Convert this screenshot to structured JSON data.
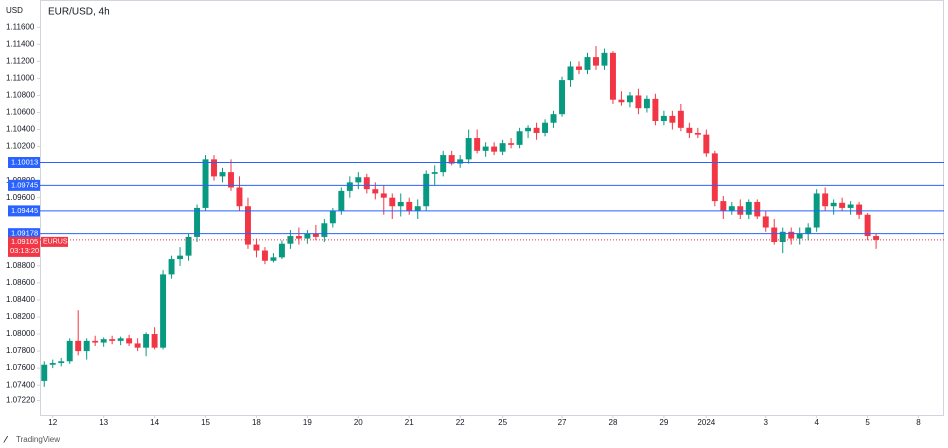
{
  "chart_data": {
    "type": "candlestick",
    "title": "EUR/USD, 4h",
    "y_unit": "USD",
    "symbol": "EURUSD",
    "countdown": "03:13:20",
    "brand": "TradingView",
    "up_color": "#089981",
    "down_color": "#f23645",
    "level_color": "#2962ff",
    "xlim": [
      -0.5,
      106
    ],
    "ylim": [
      1.0705,
      1.1192
    ],
    "xticks": [
      {
        "value": 1,
        "label": "12"
      },
      {
        "value": 7,
        "label": "13"
      },
      {
        "value": 13,
        "label": "14"
      },
      {
        "value": 19,
        "label": "15"
      },
      {
        "value": 25,
        "label": "18"
      },
      {
        "value": 31,
        "label": "19"
      },
      {
        "value": 37,
        "label": "20"
      },
      {
        "value": 43,
        "label": "21"
      },
      {
        "value": 49,
        "label": "22"
      },
      {
        "value": 54,
        "label": "25"
      },
      {
        "value": 61,
        "label": "27"
      },
      {
        "value": 67,
        "label": "28"
      },
      {
        "value": 73,
        "label": "29"
      },
      {
        "value": 78,
        "label": "2024"
      },
      {
        "value": 85,
        "label": "3"
      },
      {
        "value": 91,
        "label": "4"
      },
      {
        "value": 97,
        "label": "5"
      },
      {
        "value": 103,
        "label": "8"
      }
    ],
    "yticks": [
      {
        "value": 1.116,
        "label": "1.11600"
      },
      {
        "value": 1.114,
        "label": "1.11400"
      },
      {
        "value": 1.112,
        "label": "1.11200"
      },
      {
        "value": 1.11,
        "label": "1.11000"
      },
      {
        "value": 1.108,
        "label": "1.10800"
      },
      {
        "value": 1.106,
        "label": "1.10600"
      },
      {
        "value": 1.104,
        "label": "1.10400"
      },
      {
        "value": 1.102,
        "label": "1.10200"
      },
      {
        "value": 1.098,
        "label": "1.09800"
      },
      {
        "value": 1.096,
        "label": "1.09600"
      },
      {
        "value": 1.088,
        "label": "1.08800"
      },
      {
        "value": 1.086,
        "label": "1.08600"
      },
      {
        "value": 1.084,
        "label": "1.08400"
      },
      {
        "value": 1.082,
        "label": "1.08200"
      },
      {
        "value": 1.08,
        "label": "1.08000"
      },
      {
        "value": 1.078,
        "label": "1.07800"
      },
      {
        "value": 1.076,
        "label": "1.07600"
      },
      {
        "value": 1.074,
        "label": "1.07400"
      },
      {
        "value": 1.0722,
        "label": "1.07220"
      }
    ],
    "levels": [
      1.10013,
      1.09745,
      1.09445,
      1.09178
    ],
    "last_price": 1.09105,
    "open": [
      1.0745,
      1.0764,
      1.0766,
      1.0768,
      1.0792,
      1.078,
      1.0792,
      1.079,
      1.0794,
      1.0792,
      1.0795,
      1.0789,
      1.0784,
      1.08,
      1.0784,
      1.087,
      1.0888,
      1.0892,
      1.0914,
      1.0948,
      1.1005,
      1.0985,
      1.099,
      1.0972,
      1.095,
      1.0905,
      1.0898,
      1.0886,
      1.089,
      1.0906,
      1.0915,
      1.0912,
      1.0918,
      1.0914,
      1.093,
      1.0945,
      1.0968,
      1.0978,
      1.0984,
      1.097,
      1.0965,
      1.096,
      1.095,
      1.0955,
      1.0945,
      1.095,
      1.0988,
      1.099,
      1.101,
      1.1,
      1.1005,
      1.103,
      1.1015,
      1.102,
      1.1014,
      1.1024,
      1.1022,
      1.1038,
      1.1042,
      1.1036,
      1.1048,
      1.1058,
      1.1098,
      1.1114,
      1.111,
      1.1125,
      1.1115,
      1.113,
      1.1075,
      1.1072,
      1.108,
      1.1065,
      1.1076,
      1.105,
      1.1056,
      1.1062,
      1.1042,
      1.1036,
      1.1034,
      1.1012,
      1.0956,
      1.0945,
      1.095,
      1.094,
      1.0955,
      1.0938,
      1.0925,
      1.0908,
      1.092,
      1.0912,
      1.0918,
      1.0925,
      1.0965,
      1.095,
      1.0954,
      1.0948,
      1.0952,
      1.094,
      1.0915
    ],
    "high": [
      1.0768,
      1.077,
      1.0772,
      1.0795,
      1.0828,
      1.0795,
      1.0798,
      1.0796,
      1.0798,
      1.0797,
      1.0799,
      1.0795,
      1.0802,
      1.0808,
      1.0875,
      1.0892,
      1.0902,
      1.0918,
      1.0952,
      1.101,
      1.101,
      1.0995,
      1.1005,
      1.0985,
      1.096,
      1.0912,
      1.0902,
      1.0895,
      1.091,
      1.0922,
      1.0925,
      1.0922,
      1.0928,
      1.0935,
      1.0948,
      1.0972,
      1.0985,
      1.099,
      1.0988,
      1.0978,
      1.0975,
      1.0965,
      1.0965,
      1.096,
      1.0958,
      1.0992,
      1.0998,
      1.1015,
      1.1015,
      1.101,
      1.104,
      1.104,
      1.1025,
      1.1025,
      1.1028,
      1.103,
      1.1042,
      1.1045,
      1.1048,
      1.1052,
      1.1062,
      1.1102,
      1.112,
      1.112,
      1.113,
      1.1138,
      1.1135,
      1.1132,
      1.1085,
      1.1084,
      1.1088,
      1.108,
      1.1082,
      1.1062,
      1.1062,
      1.107,
      1.1048,
      1.1042,
      1.104,
      1.1015,
      1.0962,
      1.0955,
      1.0958,
      1.0958,
      1.0958,
      1.0945,
      1.0935,
      1.0925,
      1.0925,
      1.0925,
      1.093,
      1.097,
      1.0972,
      1.0958,
      1.096,
      1.0956,
      1.0955,
      1.0942,
      1.0918
    ],
    "low": [
      1.0738,
      1.076,
      1.0762,
      1.0765,
      1.0775,
      1.077,
      1.0786,
      1.0785,
      1.0788,
      1.0787,
      1.0786,
      1.078,
      1.0774,
      1.0782,
      1.0782,
      1.0865,
      1.088,
      1.0886,
      1.0908,
      1.0945,
      1.098,
      1.0978,
      1.0968,
      1.0945,
      1.09,
      1.089,
      1.0882,
      1.0884,
      1.0888,
      1.09,
      1.0905,
      1.0906,
      1.091,
      1.0908,
      1.0925,
      1.094,
      1.096,
      1.097,
      1.0965,
      1.0958,
      1.094,
      1.0935,
      1.0938,
      1.094,
      1.0935,
      1.0945,
      1.0975,
      1.0985,
      1.0998,
      1.0995,
      1.1,
      1.1012,
      1.1008,
      1.101,
      1.101,
      1.1018,
      1.1018,
      1.103,
      1.1028,
      1.1032,
      1.1042,
      1.1055,
      1.109,
      1.1105,
      1.1105,
      1.111,
      1.111,
      1.107,
      1.1068,
      1.1066,
      1.1058,
      1.106,
      1.1045,
      1.1045,
      1.104,
      1.1038,
      1.103,
      1.103,
      1.1008,
      1.095,
      1.0935,
      1.094,
      1.0935,
      1.0935,
      1.0935,
      1.092,
      1.0905,
      1.0895,
      1.0905,
      1.0905,
      1.091,
      1.092,
      1.0945,
      1.094,
      1.0945,
      1.094,
      1.0935,
      1.091,
      1.09
    ],
    "close": [
      1.0764,
      1.0766,
      1.0768,
      1.0792,
      1.078,
      1.0792,
      1.079,
      1.0794,
      1.0792,
      1.0795,
      1.0789,
      1.0784,
      1.08,
      1.0784,
      1.087,
      1.0888,
      1.0892,
      1.0914,
      1.0948,
      1.1005,
      1.0985,
      1.099,
      1.0972,
      1.095,
      1.0905,
      1.0898,
      1.0886,
      1.089,
      1.0906,
      1.0915,
      1.0912,
      1.0918,
      1.0914,
      1.093,
      1.0945,
      1.0968,
      1.0978,
      1.0984,
      1.097,
      1.0965,
      1.096,
      1.095,
      1.0955,
      1.0945,
      1.095,
      1.0988,
      1.099,
      1.101,
      1.1,
      1.1005,
      1.103,
      1.1015,
      1.102,
      1.1014,
      1.1024,
      1.1022,
      1.1038,
      1.1042,
      1.1036,
      1.1048,
      1.1058,
      1.1098,
      1.1114,
      1.111,
      1.1125,
      1.1115,
      1.113,
      1.1075,
      1.1072,
      1.108,
      1.1065,
      1.1076,
      1.105,
      1.1056,
      1.1048,
      1.1042,
      1.1036,
      1.1034,
      1.1012,
      1.0956,
      1.0945,
      1.095,
      1.094,
      1.0955,
      1.0938,
      1.0925,
      1.0908,
      1.092,
      1.0912,
      1.0918,
      1.0925,
      1.0965,
      1.095,
      1.0954,
      1.0948,
      1.0952,
      1.094,
      1.0915,
      1.09105
    ]
  }
}
